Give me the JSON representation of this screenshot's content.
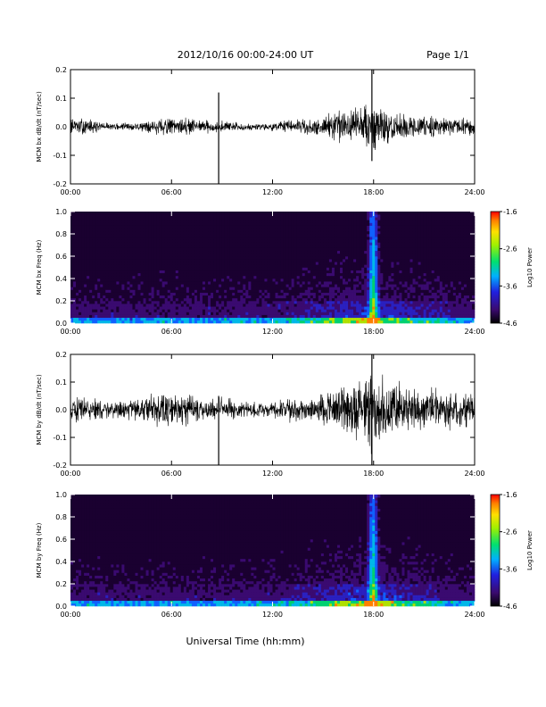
{
  "header": {
    "title": "2012/10/16  00:00-24:00 UT",
    "page": "Page 1/1"
  },
  "footer": {
    "xlabel": "Universal Time (hh:mm)"
  },
  "chart_data": [
    {
      "type": "line",
      "ylabel": "MCM bx dB/dt (nT/sec)",
      "xlim": [
        0,
        24
      ],
      "ylim": [
        -0.2,
        0.2
      ],
      "yticks": [
        "-0.2",
        "-0.1",
        "0.0",
        "0.1",
        "0.2"
      ],
      "xticks": [
        "00:00",
        "06:00",
        "12:00",
        "18:00",
        "24:00"
      ],
      "envelope": {
        "hours": [
          0,
          1,
          2,
          3,
          4,
          5,
          6,
          7,
          8,
          9,
          10,
          11,
          12,
          13,
          14,
          15,
          16,
          17,
          18,
          19,
          20,
          21,
          22,
          23,
          24
        ],
        "amplitude": [
          0.02,
          0.02,
          0.01,
          0.01,
          0.01,
          0.02,
          0.02,
          0.02,
          0.015,
          0.015,
          0.01,
          0.01,
          0.01,
          0.015,
          0.02,
          0.025,
          0.04,
          0.05,
          0.06,
          0.04,
          0.03,
          0.03,
          0.02,
          0.02,
          0.02
        ]
      },
      "spikes": [
        {
          "x": 8.8,
          "ymin": -0.2,
          "ymax": 0.12
        },
        {
          "x": 17.9,
          "ymin": -0.12,
          "ymax": 0.2
        }
      ]
    },
    {
      "type": "heatmap",
      "ylabel": "MCM bx Freq (Hz)",
      "xlim": [
        0,
        24
      ],
      "ylim": [
        0.0,
        1.0
      ],
      "yticks": [
        "0.0",
        "0.2",
        "0.4",
        "0.6",
        "0.8",
        "1.0"
      ],
      "xticks": [
        "00:00",
        "06:00",
        "12:00",
        "18:00",
        "24:00"
      ],
      "colorbar": {
        "label": "Log10 Power",
        "range": [
          -4.6,
          -1.6
        ],
        "ticks": [
          "-1.6",
          "-2.6",
          "-3.6",
          "-4.6"
        ]
      }
    },
    {
      "type": "line",
      "ylabel": "MCM by dB/dt (nT/sec)",
      "xlim": [
        0,
        24
      ],
      "ylim": [
        -0.2,
        0.2
      ],
      "yticks": [
        "-0.2",
        "-0.1",
        "0.0",
        "0.1",
        "0.2"
      ],
      "xticks": [
        "00:00",
        "06:00",
        "12:00",
        "18:00",
        "24:00"
      ],
      "envelope": {
        "hours": [
          0,
          1,
          2,
          3,
          4,
          5,
          6,
          7,
          8,
          9,
          10,
          11,
          12,
          13,
          14,
          15,
          16,
          17,
          18,
          19,
          20,
          21,
          22,
          23,
          24
        ],
        "amplitude": [
          0.03,
          0.03,
          0.02,
          0.02,
          0.03,
          0.04,
          0.04,
          0.04,
          0.03,
          0.03,
          0.02,
          0.02,
          0.02,
          0.03,
          0.03,
          0.04,
          0.06,
          0.08,
          0.1,
          0.07,
          0.06,
          0.06,
          0.05,
          0.05,
          0.04
        ]
      },
      "spikes": [
        {
          "x": 8.8,
          "ymin": -0.2,
          "ymax": 0.05
        },
        {
          "x": 17.9,
          "ymin": -0.2,
          "ymax": 0.2
        }
      ]
    },
    {
      "type": "heatmap",
      "ylabel": "MCM by Freq (Hz)",
      "xlim": [
        0,
        24
      ],
      "ylim": [
        0.0,
        1.0
      ],
      "yticks": [
        "0.0",
        "0.2",
        "0.4",
        "0.6",
        "0.8",
        "1.0"
      ],
      "xticks": [
        "00:00",
        "06:00",
        "12:00",
        "18:00",
        "24:00"
      ],
      "colorbar": {
        "label": "Log10 Power",
        "range": [
          -4.6,
          -1.6
        ],
        "ticks": [
          "-1.6",
          "-2.6",
          "-3.6",
          "-4.6"
        ]
      }
    }
  ]
}
